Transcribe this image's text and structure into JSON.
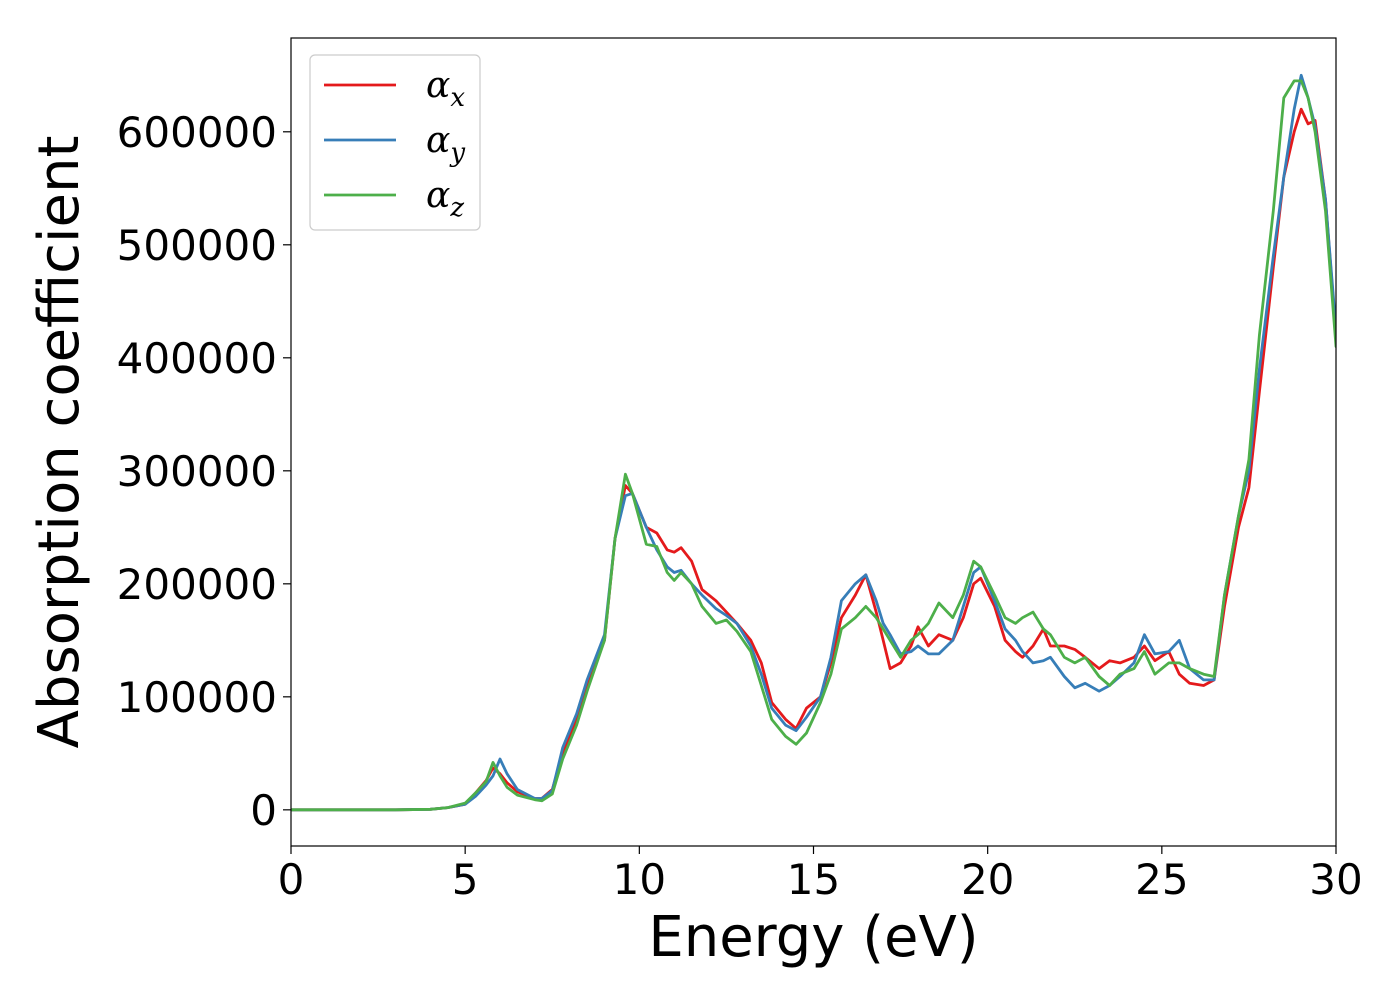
{
  "chart_data": {
    "type": "line",
    "title": "",
    "xlabel": "Energy (eV)",
    "ylabel": "Absorption coefficient",
    "xlim": [
      0,
      30
    ],
    "ylim": [
      -32000,
      683000
    ],
    "x_ticks": [
      0,
      5,
      10,
      15,
      20,
      25,
      30
    ],
    "y_ticks": [
      0,
      100000,
      200000,
      300000,
      400000,
      500000,
      600000
    ],
    "grid": false,
    "legend_position": "top-left",
    "series": [
      {
        "name": "α_x",
        "symbol": "α",
        "subscript": "x",
        "color": "#e41a1c",
        "points": [
          [
            0,
            0
          ],
          [
            1,
            0
          ],
          [
            2,
            0
          ],
          [
            3,
            0
          ],
          [
            4,
            500
          ],
          [
            4.5,
            2000
          ],
          [
            5,
            5000
          ],
          [
            5.3,
            15000
          ],
          [
            5.6,
            26000
          ],
          [
            5.8,
            37000
          ],
          [
            6,
            32000
          ],
          [
            6.2,
            24000
          ],
          [
            6.5,
            16000
          ],
          [
            7,
            10000
          ],
          [
            7.2,
            10000
          ],
          [
            7.5,
            18000
          ],
          [
            7.8,
            50000
          ],
          [
            8.2,
            80000
          ],
          [
            8.5,
            110000
          ],
          [
            9,
            150000
          ],
          [
            9.3,
            240000
          ],
          [
            9.6,
            287000
          ],
          [
            9.8,
            280000
          ],
          [
            10.2,
            250000
          ],
          [
            10.5,
            245000
          ],
          [
            10.8,
            230000
          ],
          [
            11,
            228000
          ],
          [
            11.2,
            232000
          ],
          [
            11.5,
            220000
          ],
          [
            11.8,
            195000
          ],
          [
            12.2,
            185000
          ],
          [
            12.5,
            175000
          ],
          [
            12.8,
            165000
          ],
          [
            13.2,
            150000
          ],
          [
            13.5,
            130000
          ],
          [
            13.8,
            95000
          ],
          [
            14.2,
            80000
          ],
          [
            14.5,
            72000
          ],
          [
            14.8,
            90000
          ],
          [
            15.2,
            100000
          ],
          [
            15.5,
            130000
          ],
          [
            15.8,
            170000
          ],
          [
            16.2,
            190000
          ],
          [
            16.5,
            208000
          ],
          [
            16.8,
            175000
          ],
          [
            17,
            150000
          ],
          [
            17.2,
            125000
          ],
          [
            17.5,
            130000
          ],
          [
            17.8,
            145000
          ],
          [
            18,
            162000
          ],
          [
            18.3,
            145000
          ],
          [
            18.6,
            155000
          ],
          [
            19,
            150000
          ],
          [
            19.3,
            170000
          ],
          [
            19.6,
            200000
          ],
          [
            19.8,
            205000
          ],
          [
            20.2,
            180000
          ],
          [
            20.5,
            150000
          ],
          [
            20.8,
            140000
          ],
          [
            21,
            135000
          ],
          [
            21.3,
            145000
          ],
          [
            21.6,
            160000
          ],
          [
            21.8,
            145000
          ],
          [
            22.2,
            145000
          ],
          [
            22.5,
            142000
          ],
          [
            22.8,
            135000
          ],
          [
            23.2,
            125000
          ],
          [
            23.5,
            132000
          ],
          [
            23.8,
            130000
          ],
          [
            24.2,
            135000
          ],
          [
            24.5,
            145000
          ],
          [
            24.8,
            132000
          ],
          [
            25.2,
            140000
          ],
          [
            25.5,
            120000
          ],
          [
            25.8,
            112000
          ],
          [
            26.2,
            110000
          ],
          [
            26.5,
            115000
          ],
          [
            26.8,
            180000
          ],
          [
            27.2,
            250000
          ],
          [
            27.5,
            285000
          ],
          [
            27.8,
            370000
          ],
          [
            28.2,
            480000
          ],
          [
            28.5,
            560000
          ],
          [
            28.8,
            600000
          ],
          [
            29,
            620000
          ],
          [
            29.2,
            607000
          ],
          [
            29.4,
            610000
          ],
          [
            29.7,
            540000
          ],
          [
            30,
            420000
          ]
        ]
      },
      {
        "name": "α_y",
        "symbol": "α",
        "subscript": "y",
        "color": "#377eb8",
        "points": [
          [
            0,
            0
          ],
          [
            1,
            0
          ],
          [
            2,
            0
          ],
          [
            3,
            0
          ],
          [
            4,
            500
          ],
          [
            4.5,
            2000
          ],
          [
            5,
            5000
          ],
          [
            5.3,
            12000
          ],
          [
            5.6,
            22000
          ],
          [
            5.8,
            30000
          ],
          [
            6,
            45000
          ],
          [
            6.2,
            32000
          ],
          [
            6.5,
            18000
          ],
          [
            7,
            10000
          ],
          [
            7.2,
            10000
          ],
          [
            7.5,
            17000
          ],
          [
            7.8,
            55000
          ],
          [
            8.2,
            85000
          ],
          [
            8.5,
            115000
          ],
          [
            9,
            155000
          ],
          [
            9.3,
            240000
          ],
          [
            9.6,
            278000
          ],
          [
            9.8,
            280000
          ],
          [
            10.2,
            250000
          ],
          [
            10.5,
            230000
          ],
          [
            10.8,
            215000
          ],
          [
            11,
            210000
          ],
          [
            11.2,
            212000
          ],
          [
            11.5,
            200000
          ],
          [
            11.8,
            190000
          ],
          [
            12.2,
            178000
          ],
          [
            12.5,
            172000
          ],
          [
            12.8,
            165000
          ],
          [
            13.2,
            145000
          ],
          [
            13.5,
            120000
          ],
          [
            13.8,
            90000
          ],
          [
            14.2,
            75000
          ],
          [
            14.5,
            70000
          ],
          [
            14.8,
            82000
          ],
          [
            15.2,
            100000
          ],
          [
            15.5,
            135000
          ],
          [
            15.8,
            185000
          ],
          [
            16.2,
            200000
          ],
          [
            16.5,
            208000
          ],
          [
            16.8,
            185000
          ],
          [
            17,
            165000
          ],
          [
            17.2,
            155000
          ],
          [
            17.5,
            138000
          ],
          [
            17.8,
            140000
          ],
          [
            18,
            145000
          ],
          [
            18.3,
            138000
          ],
          [
            18.6,
            138000
          ],
          [
            19,
            150000
          ],
          [
            19.3,
            180000
          ],
          [
            19.6,
            210000
          ],
          [
            19.8,
            215000
          ],
          [
            20.2,
            185000
          ],
          [
            20.5,
            160000
          ],
          [
            20.8,
            150000
          ],
          [
            21,
            140000
          ],
          [
            21.3,
            130000
          ],
          [
            21.6,
            132000
          ],
          [
            21.8,
            135000
          ],
          [
            22.2,
            118000
          ],
          [
            22.5,
            108000
          ],
          [
            22.8,
            112000
          ],
          [
            23.2,
            105000
          ],
          [
            23.5,
            110000
          ],
          [
            23.8,
            118000
          ],
          [
            24.2,
            130000
          ],
          [
            24.5,
            155000
          ],
          [
            24.8,
            138000
          ],
          [
            25.2,
            140000
          ],
          [
            25.5,
            150000
          ],
          [
            25.8,
            125000
          ],
          [
            26.2,
            115000
          ],
          [
            26.5,
            115000
          ],
          [
            26.8,
            190000
          ],
          [
            27.2,
            260000
          ],
          [
            27.5,
            300000
          ],
          [
            27.8,
            390000
          ],
          [
            28.2,
            490000
          ],
          [
            28.5,
            560000
          ],
          [
            28.8,
            620000
          ],
          [
            29,
            650000
          ],
          [
            29.2,
            630000
          ],
          [
            29.4,
            605000
          ],
          [
            29.7,
            540000
          ],
          [
            30,
            425000
          ]
        ]
      },
      {
        "name": "α_z",
        "symbol": "α",
        "subscript": "z",
        "color": "#4daf4a",
        "points": [
          [
            0,
            0
          ],
          [
            1,
            0
          ],
          [
            2,
            0
          ],
          [
            3,
            0
          ],
          [
            4,
            500
          ],
          [
            4.5,
            2000
          ],
          [
            5,
            6000
          ],
          [
            5.3,
            15000
          ],
          [
            5.6,
            25000
          ],
          [
            5.8,
            42000
          ],
          [
            6,
            30000
          ],
          [
            6.2,
            20000
          ],
          [
            6.5,
            13000
          ],
          [
            7,
            9000
          ],
          [
            7.2,
            8000
          ],
          [
            7.5,
            14000
          ],
          [
            7.8,
            45000
          ],
          [
            8.2,
            75000
          ],
          [
            8.5,
            105000
          ],
          [
            9,
            150000
          ],
          [
            9.3,
            240000
          ],
          [
            9.6,
            297000
          ],
          [
            9.8,
            280000
          ],
          [
            10.2,
            235000
          ],
          [
            10.5,
            233000
          ],
          [
            10.8,
            210000
          ],
          [
            11,
            203000
          ],
          [
            11.2,
            210000
          ],
          [
            11.5,
            200000
          ],
          [
            11.8,
            180000
          ],
          [
            12.2,
            165000
          ],
          [
            12.5,
            168000
          ],
          [
            12.8,
            158000
          ],
          [
            13.2,
            140000
          ],
          [
            13.5,
            110000
          ],
          [
            13.8,
            80000
          ],
          [
            14.2,
            65000
          ],
          [
            14.5,
            58000
          ],
          [
            14.8,
            68000
          ],
          [
            15.2,
            95000
          ],
          [
            15.5,
            120000
          ],
          [
            15.8,
            160000
          ],
          [
            16.2,
            170000
          ],
          [
            16.5,
            180000
          ],
          [
            16.8,
            170000
          ],
          [
            17,
            160000
          ],
          [
            17.2,
            150000
          ],
          [
            17.5,
            135000
          ],
          [
            17.8,
            150000
          ],
          [
            18,
            155000
          ],
          [
            18.3,
            165000
          ],
          [
            18.6,
            183000
          ],
          [
            19,
            170000
          ],
          [
            19.3,
            190000
          ],
          [
            19.6,
            220000
          ],
          [
            19.8,
            215000
          ],
          [
            20.2,
            190000
          ],
          [
            20.5,
            170000
          ],
          [
            20.8,
            165000
          ],
          [
            21,
            170000
          ],
          [
            21.3,
            175000
          ],
          [
            21.6,
            160000
          ],
          [
            21.8,
            155000
          ],
          [
            22.2,
            135000
          ],
          [
            22.5,
            130000
          ],
          [
            22.8,
            135000
          ],
          [
            23.2,
            118000
          ],
          [
            23.5,
            110000
          ],
          [
            23.8,
            120000
          ],
          [
            24.2,
            125000
          ],
          [
            24.5,
            140000
          ],
          [
            24.8,
            120000
          ],
          [
            25.2,
            130000
          ],
          [
            25.5,
            130000
          ],
          [
            25.8,
            125000
          ],
          [
            26.2,
            120000
          ],
          [
            26.5,
            118000
          ],
          [
            26.8,
            190000
          ],
          [
            27.2,
            260000
          ],
          [
            27.5,
            310000
          ],
          [
            27.8,
            420000
          ],
          [
            28.2,
            530000
          ],
          [
            28.5,
            630000
          ],
          [
            28.8,
            645000
          ],
          [
            29,
            645000
          ],
          [
            29.2,
            630000
          ],
          [
            29.4,
            600000
          ],
          [
            29.7,
            530000
          ],
          [
            30,
            410000
          ]
        ]
      }
    ]
  }
}
